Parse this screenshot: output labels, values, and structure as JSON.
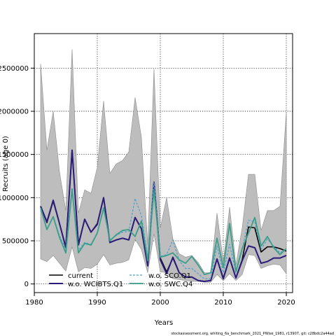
{
  "chart_data": {
    "type": "line",
    "xlabel": "Years",
    "ylabel": "Recruits (age 0)",
    "xlim": [
      1980,
      2021
    ],
    "ylim": [
      -100000,
      2900000
    ],
    "x_ticks": [
      1980,
      1990,
      2000,
      2010,
      2020
    ],
    "y_ticks": [
      0,
      500000,
      1000000,
      1500000,
      2000000,
      2500000
    ],
    "y_tick_labels": [
      "0",
      "500000",
      "1000000",
      "1500000",
      "2000000",
      "2500000"
    ],
    "grid": true,
    "legend_position": "bottom-left",
    "x": [
      1981,
      1982,
      1983,
      1984,
      1985,
      1986,
      1987,
      1988,
      1989,
      1990,
      1991,
      1992,
      1993,
      1994,
      1995,
      1996,
      1997,
      1998,
      1999,
      2000,
      2001,
      2002,
      2003,
      2004,
      2005,
      2006,
      2007,
      2008,
      2009,
      2010,
      2011,
      2012,
      2013,
      2014,
      2015,
      2016,
      2017,
      2018,
      2019,
      2020
    ],
    "band": {
      "upper": [
        2550000,
        1550000,
        2000000,
        1300000,
        850000,
        2720000,
        820000,
        1090000,
        1050000,
        1350000,
        2120000,
        1280000,
        1390000,
        1430000,
        1530000,
        2160000,
        1700000,
        450000,
        2490000,
        650000,
        1000000,
        520000,
        350000,
        310000,
        330000,
        250000,
        130000,
        130000,
        820000,
        260000,
        890000,
        220000,
        650000,
        1270000,
        1270000,
        620000,
        850000,
        850000,
        900000,
        1990000
      ],
      "lower": [
        290000,
        260000,
        330000,
        240000,
        150000,
        430000,
        140000,
        190000,
        180000,
        230000,
        340000,
        220000,
        240000,
        250000,
        280000,
        520000,
        400000,
        130000,
        580000,
        140000,
        130000,
        60000,
        50000,
        40000,
        30000,
        30000,
        20000,
        20000,
        110000,
        40000,
        120000,
        40000,
        110000,
        340000,
        330000,
        180000,
        210000,
        230000,
        220000,
        120000
      ]
    },
    "series": [
      {
        "name": "current",
        "color": "#000000",
        "style": "solid",
        "values": [
          900000,
          710000,
          960000,
          700000,
          430000,
          1550000,
          460000,
          750000,
          600000,
          700000,
          1000000,
          480000,
          510000,
          530000,
          510000,
          770000,
          640000,
          210000,
          1180000,
          300000,
          140000,
          300000,
          130000,
          80000,
          80000,
          40000,
          30000,
          40000,
          290000,
          70000,
          300000,
          70000,
          280000,
          660000,
          650000,
          370000,
          430000,
          430000,
          410000,
          380000
        ]
      },
      {
        "name": "w.o. WCIBTS.Q1",
        "color": "#2d1b7a",
        "style": "solid",
        "values": [
          900000,
          720000,
          970000,
          700000,
          420000,
          1550000,
          450000,
          750000,
          600000,
          690000,
          1000000,
          480000,
          510000,
          530000,
          510000,
          770000,
          640000,
          210000,
          1180000,
          280000,
          120000,
          310000,
          130000,
          80000,
          80000,
          40000,
          30000,
          40000,
          290000,
          60000,
          300000,
          70000,
          270000,
          440000,
          420000,
          240000,
          260000,
          300000,
          300000,
          330000
        ]
      },
      {
        "name": "w.o. SCO.Q1",
        "color": "#4aa0cc",
        "style": "dashed",
        "values": [
          880000,
          640000,
          780000,
          560000,
          400000,
          1110000,
          390000,
          480000,
          460000,
          590000,
          890000,
          510000,
          560000,
          600000,
          610000,
          990000,
          790000,
          310000,
          1180000,
          320000,
          340000,
          510000,
          270000,
          180000,
          180000,
          120000,
          60000,
          60000,
          440000,
          130000,
          460000,
          130000,
          400000,
          740000,
          720000,
          400000,
          520000,
          440000,
          360000,
          410000
        ]
      },
      {
        "name": "w.o. SWC.Q4",
        "color": "#3a9e8a",
        "style": "solid",
        "values": [
          880000,
          630000,
          780000,
          540000,
          360000,
          1100000,
          360000,
          470000,
          450000,
          590000,
          880000,
          500000,
          570000,
          620000,
          630000,
          550000,
          730000,
          270000,
          1090000,
          310000,
          330000,
          360000,
          280000,
          240000,
          320000,
          220000,
          110000,
          130000,
          530000,
          190000,
          700000,
          140000,
          410000,
          590000,
          770000,
          440000,
          550000,
          420000,
          340000,
          410000
        ]
      }
    ]
  },
  "footer": "stockassessment.org, whiting_6a_benchmark_2021_PWise_1981, r13907, git: c28bdc2a44ad"
}
